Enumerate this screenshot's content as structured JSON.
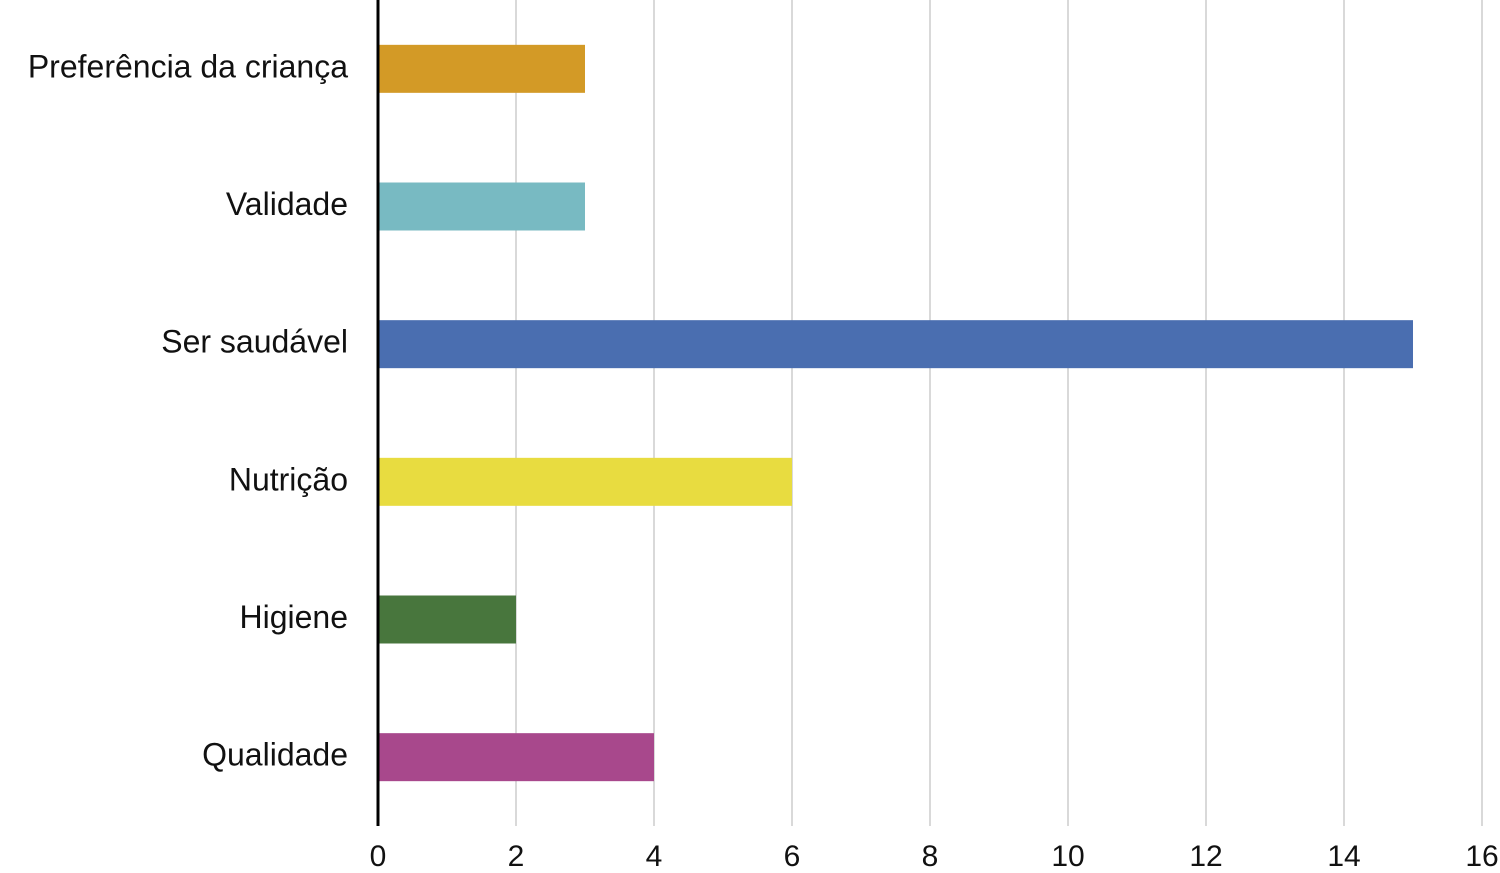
{
  "chart_data": {
    "type": "bar",
    "orientation": "horizontal",
    "categories": [
      "Preferência da criança",
      "Validade",
      "Ser saudável",
      "Nutrição",
      "Higiene",
      "Qualidade"
    ],
    "values": [
      3,
      3,
      15,
      6,
      2,
      4
    ],
    "colors": [
      "#d39a26",
      "#78bac2",
      "#4a6eb0",
      "#e8dc40",
      "#48763d",
      "#a8488c"
    ],
    "xlim": [
      0,
      16
    ],
    "xticks": [
      0,
      2,
      4,
      6,
      8,
      10,
      12,
      14,
      16
    ],
    "grid": true
  }
}
